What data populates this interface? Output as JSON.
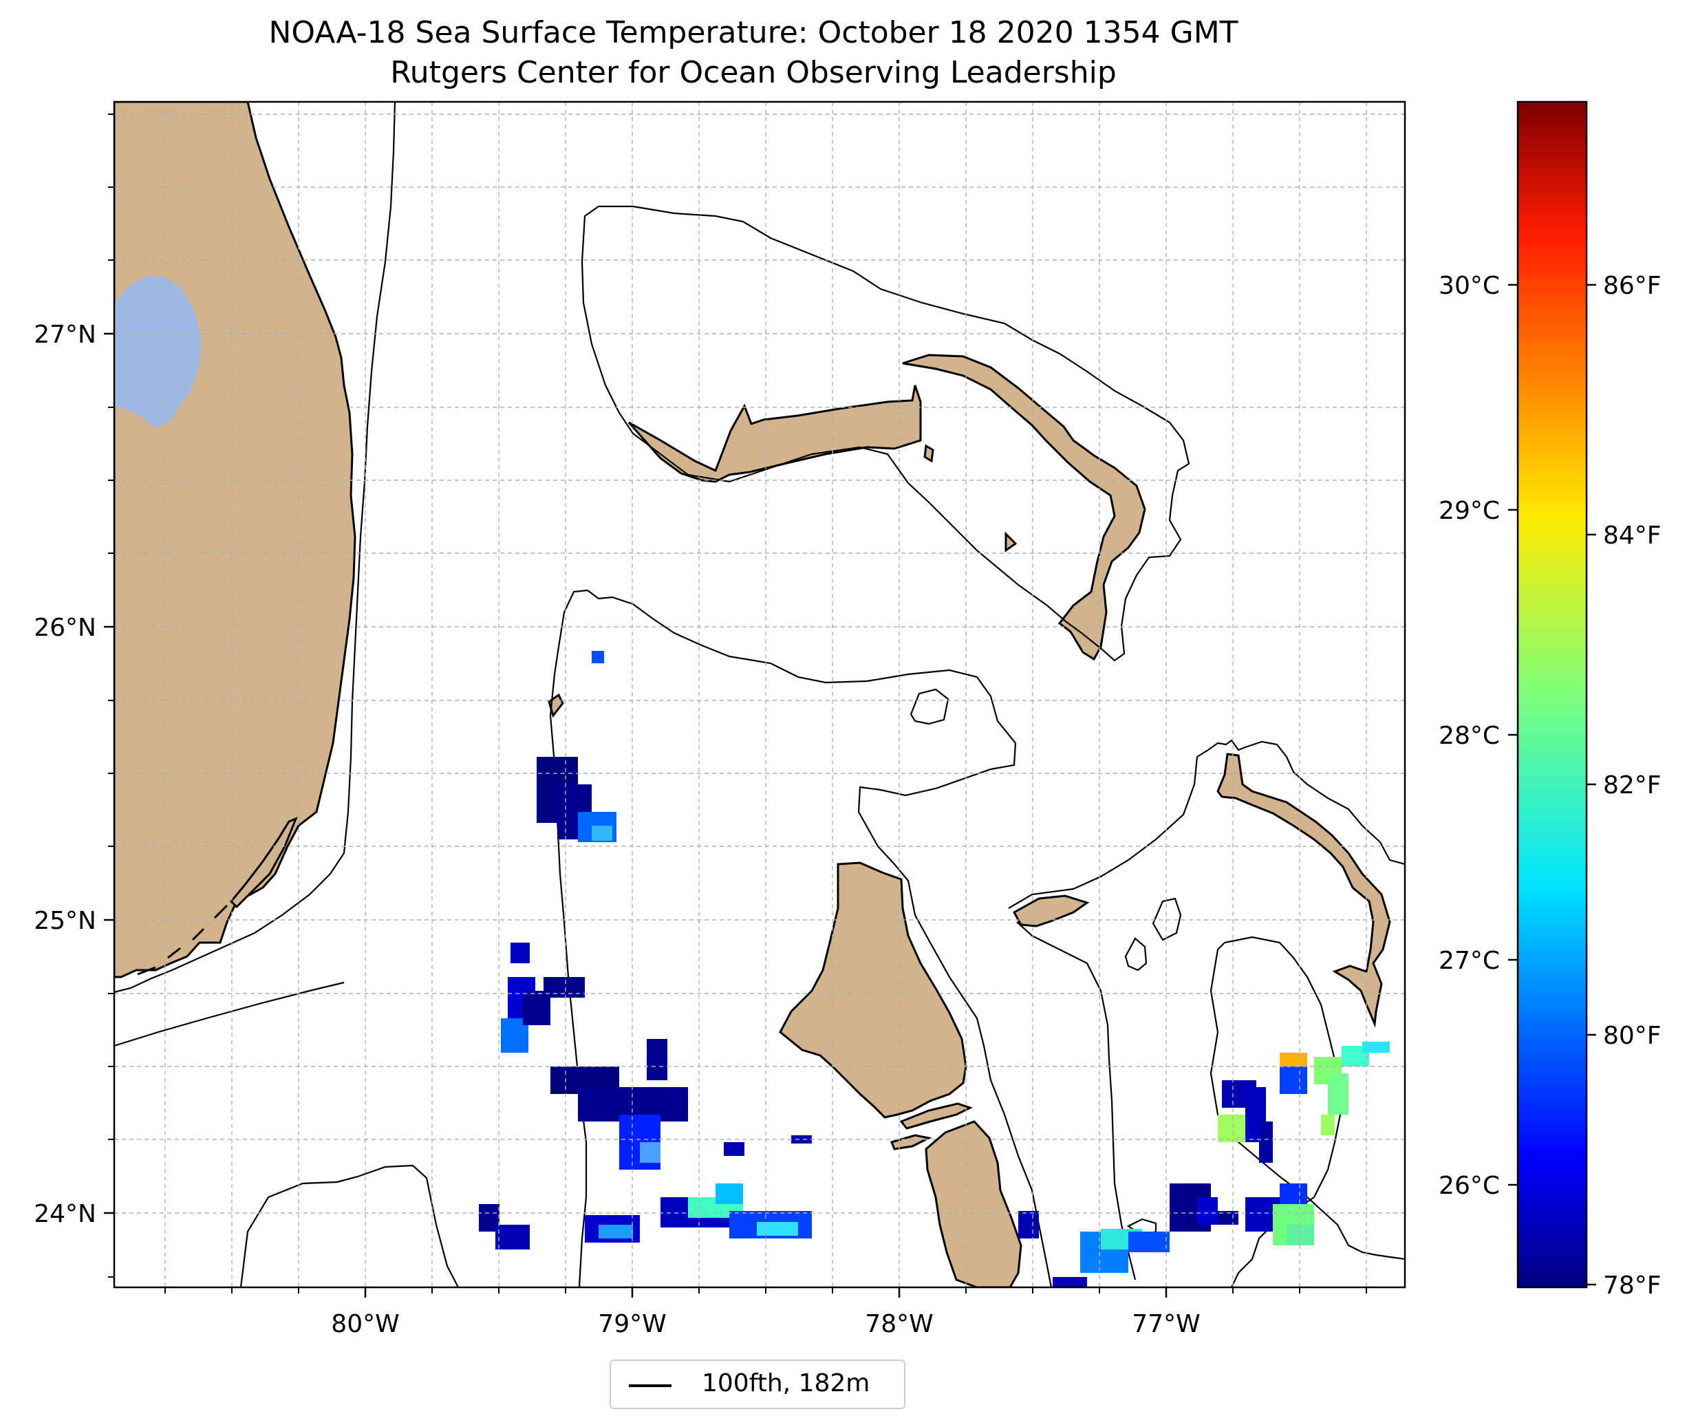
{
  "title": "NOAA-18 Sea Surface Temperature: October 18 2020 1354 GMT",
  "subtitle": "Rutgers Center for Ocean Observing Leadership",
  "map": {
    "lon_ticks": [
      "80°W",
      "79°W",
      "78°W",
      "77°W"
    ],
    "lat_ticks": [
      "27°N",
      "26°N",
      "25°N",
      "24°N"
    ],
    "lon_range": [
      -81.0,
      -76.05
    ],
    "lat_range": [
      23.75,
      27.8
    ],
    "gridlines": true,
    "land_color": "#d2b48c",
    "lake_color": "#9db8e4",
    "features": [
      "Florida",
      "Lake Okeechobee",
      "Grand Bahama",
      "Abaco",
      "Andros",
      "Eleuthera",
      "Berry Islands",
      "Bimini"
    ]
  },
  "colorbar": {
    "celsius_ticks": [
      "30°C",
      "29°C",
      "28°C",
      "27°C",
      "26°C"
    ],
    "fahrenheit_ticks": [
      "86°F",
      "84°F",
      "82°F",
      "80°F",
      "78°F"
    ],
    "colormap": "jet",
    "celsius_range": [
      25.56,
      30.83
    ]
  },
  "legend": {
    "label": "100fth, 182m"
  }
}
